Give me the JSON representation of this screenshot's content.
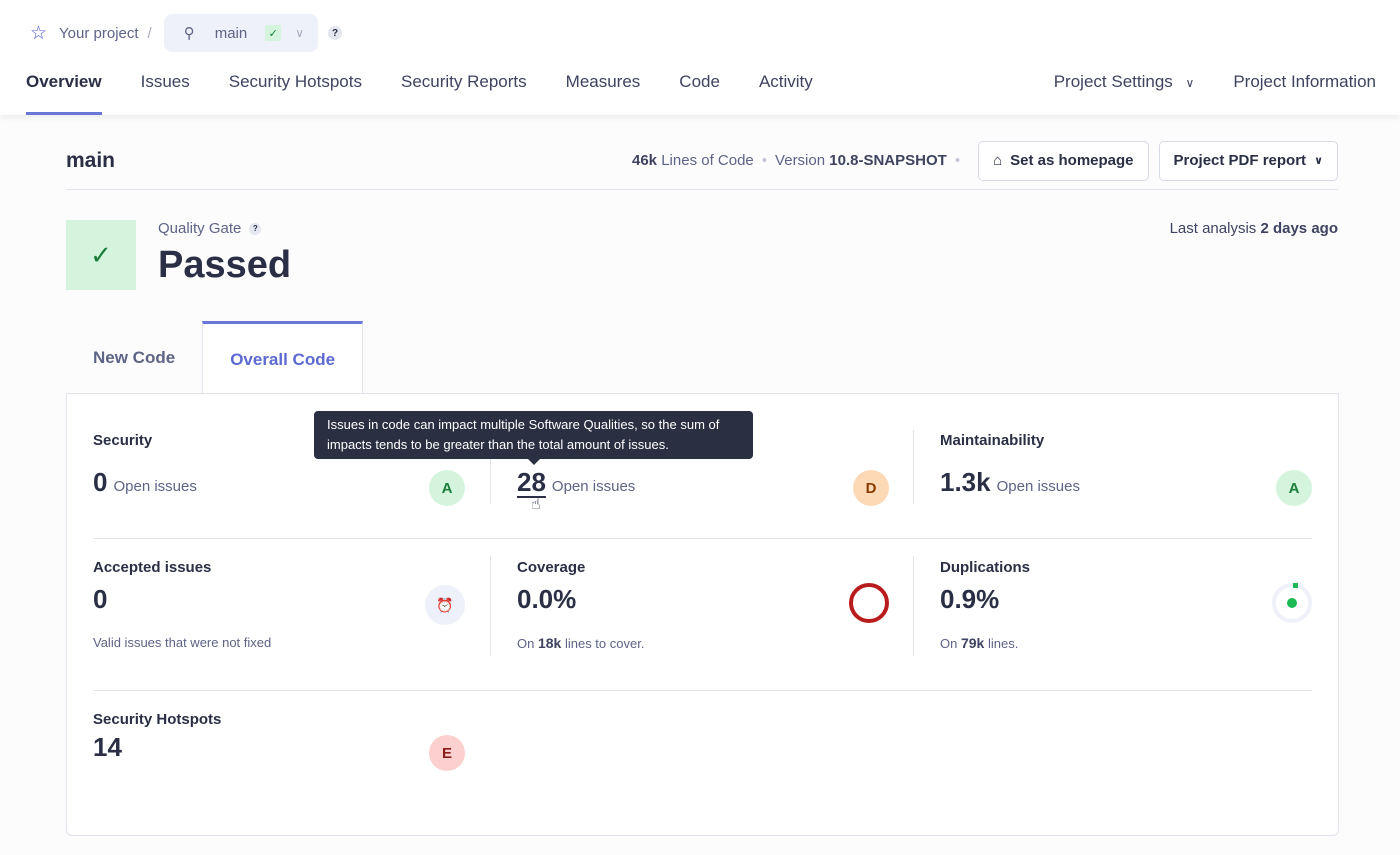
{
  "breadcrumb": {
    "project": "Your project",
    "separator": "/",
    "branch": "main",
    "help": "?"
  },
  "nav": {
    "tabs": [
      "Overview",
      "Issues",
      "Security Hotspots",
      "Security Reports",
      "Measures",
      "Code",
      "Activity"
    ],
    "project_settings": "Project Settings",
    "project_information": "Project Information"
  },
  "page": {
    "title": "main",
    "loc_value": "46k",
    "loc_label": "Lines of Code",
    "version_label": "Version",
    "version": "10.8-SNAPSHOT",
    "homepage_button": "Set as homepage",
    "pdf_button": "Project PDF report"
  },
  "quality_gate": {
    "label": "Quality Gate",
    "help": "?",
    "status": "Passed",
    "last_analysis_label": "Last analysis",
    "last_analysis": "2 days ago"
  },
  "code_tabs": [
    "New Code",
    "Overall Code"
  ],
  "metrics": {
    "security": {
      "title": "Security",
      "value": "0",
      "unit": "Open issues",
      "rating": "A"
    },
    "reliability": {
      "value": "28",
      "unit": "Open issues",
      "rating": "D"
    },
    "maintainability": {
      "title": "Maintainability",
      "value": "1.3k",
      "unit": "Open issues",
      "rating": "A"
    },
    "accepted": {
      "title": "Accepted issues",
      "value": "0",
      "sub": "Valid issues that were not fixed"
    },
    "coverage": {
      "title": "Coverage",
      "value": "0.0%",
      "sub_pre": "On",
      "sub_val": "18k",
      "sub_post": "lines to cover."
    },
    "duplications": {
      "title": "Duplications",
      "value": "0.9%",
      "sub_pre": "On",
      "sub_val": "79k",
      "sub_post": "lines."
    },
    "hotspots": {
      "title": "Security Hotspots",
      "value": "14",
      "rating": "E"
    }
  },
  "tooltip": "Issues in code can impact multiple Software Qualities, so the sum of impacts tends to be greater than the total amount of issues.",
  "colors": {
    "accent": "#6b77d6",
    "rating_a": "#d4f4dd",
    "rating_d": "#fdd9b5",
    "rating_e": "#fcd0ce",
    "coverage_ring": "#b91c1c",
    "duplication": "#1db954"
  }
}
